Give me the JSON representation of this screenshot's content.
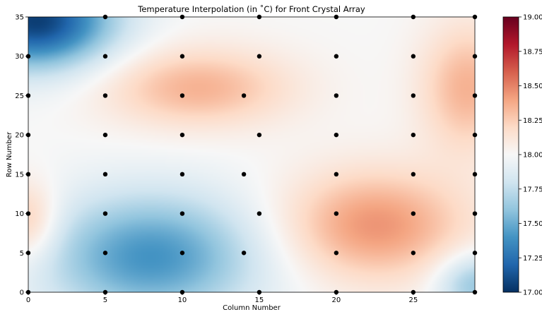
{
  "chart_data": {
    "type": "heatmap",
    "title": "Temperature Interpolation (in ˚C) for Front Crystal Array",
    "xlabel": "Column Number",
    "ylabel": "Row Number",
    "xlim": [
      0,
      29
    ],
    "ylim": [
      0,
      35
    ],
    "x_ticks": [
      "0",
      "5",
      "10",
      "15",
      "20",
      "25"
    ],
    "y_ticks": [
      "0",
      "5",
      "10",
      "15",
      "20",
      "25",
      "30",
      "35"
    ],
    "colormap": "RdBu_r",
    "colorbar": {
      "min": 17.0,
      "max": 19.0,
      "ticks": [
        "17.00",
        "17.25",
        "17.50",
        "17.75",
        "18.00",
        "18.25",
        "18.50",
        "18.75",
        "19.00"
      ],
      "colors": [
        "#053061",
        "#2166ac",
        "#4393c3",
        "#92c5de",
        "#d1e5f0",
        "#f7f7f7",
        "#fddbc7",
        "#f4a582",
        "#d6604d",
        "#b2182b",
        "#67001f"
      ]
    },
    "sensor_points": [
      {
        "x": 5,
        "y": 35
      },
      {
        "x": 10,
        "y": 35
      },
      {
        "x": 15,
        "y": 35
      },
      {
        "x": 20,
        "y": 35
      },
      {
        "x": 25,
        "y": 35
      },
      {
        "x": 29,
        "y": 35
      },
      {
        "x": 0,
        "y": 30
      },
      {
        "x": 5,
        "y": 30
      },
      {
        "x": 10,
        "y": 30
      },
      {
        "x": 15,
        "y": 30
      },
      {
        "x": 20,
        "y": 30
      },
      {
        "x": 25,
        "y": 30
      },
      {
        "x": 29,
        "y": 30
      },
      {
        "x": 0,
        "y": 25
      },
      {
        "x": 5,
        "y": 25
      },
      {
        "x": 10,
        "y": 25
      },
      {
        "x": 14,
        "y": 25
      },
      {
        "x": 20,
        "y": 25
      },
      {
        "x": 25,
        "y": 25
      },
      {
        "x": 29,
        "y": 25
      },
      {
        "x": 0,
        "y": 20
      },
      {
        "x": 5,
        "y": 20
      },
      {
        "x": 10,
        "y": 20
      },
      {
        "x": 15,
        "y": 20
      },
      {
        "x": 20,
        "y": 20
      },
      {
        "x": 25,
        "y": 20
      },
      {
        "x": 29,
        "y": 20
      },
      {
        "x": 0,
        "y": 15
      },
      {
        "x": 5,
        "y": 15
      },
      {
        "x": 10,
        "y": 15
      },
      {
        "x": 14,
        "y": 15
      },
      {
        "x": 20,
        "y": 15
      },
      {
        "x": 25,
        "y": 15
      },
      {
        "x": 29,
        "y": 15
      },
      {
        "x": 0,
        "y": 10
      },
      {
        "x": 5,
        "y": 10
      },
      {
        "x": 10,
        "y": 10
      },
      {
        "x": 15,
        "y": 10
      },
      {
        "x": 20,
        "y": 10
      },
      {
        "x": 25,
        "y": 10
      },
      {
        "x": 29,
        "y": 10
      },
      {
        "x": 0,
        "y": 5
      },
      {
        "x": 5,
        "y": 5
      },
      {
        "x": 10,
        "y": 5
      },
      {
        "x": 14,
        "y": 5
      },
      {
        "x": 20,
        "y": 5
      },
      {
        "x": 25,
        "y": 5
      },
      {
        "x": 29,
        "y": 5
      },
      {
        "x": 0,
        "y": 0
      },
      {
        "x": 5,
        "y": 0
      },
      {
        "x": 10,
        "y": 0
      },
      {
        "x": 15,
        "y": 0
      },
      {
        "x": 20,
        "y": 0
      },
      {
        "x": 25,
        "y": 0
      },
      {
        "x": 29,
        "y": 0
      }
    ],
    "temperature_features": [
      {
        "x": 0.5,
        "y": 34.5,
        "value": 17.05,
        "spread_x": 5,
        "spread_y": 6
      },
      {
        "x": 8,
        "y": 4.5,
        "value": 17.4,
        "spread_x": 7,
        "spread_y": 8
      },
      {
        "x": 11,
        "y": 26,
        "value": 18.35,
        "spread_x": 6,
        "spread_y": 5
      },
      {
        "x": 22.5,
        "y": 8.5,
        "value": 18.45,
        "spread_x": 6,
        "spread_y": 7
      },
      {
        "x": 28.5,
        "y": 26,
        "value": 18.35,
        "spread_x": 3,
        "spread_y": 8
      },
      {
        "x": 0,
        "y": 9,
        "value": 18.3,
        "spread_x": 2,
        "spread_y": 5
      },
      {
        "x": 29,
        "y": 1,
        "value": 17.6,
        "spread_x": 2.5,
        "spread_y": 4
      }
    ]
  }
}
